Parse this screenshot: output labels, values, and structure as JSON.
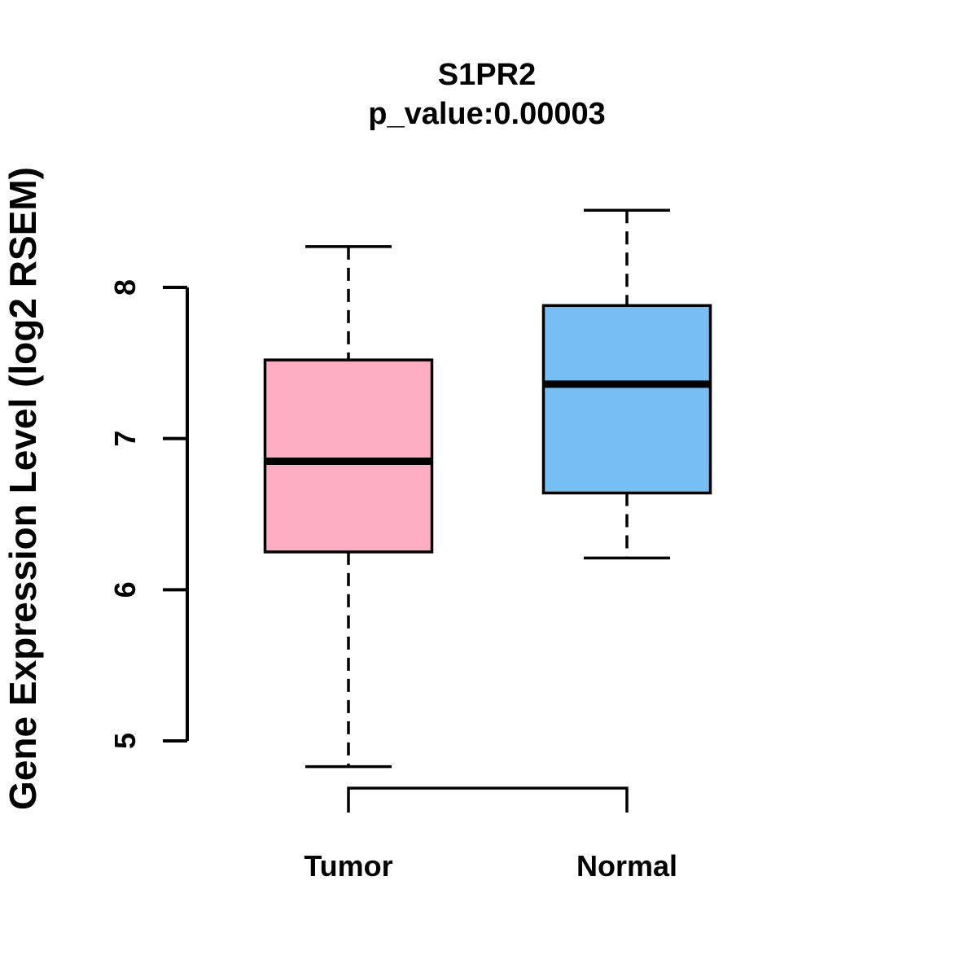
{
  "chart_data": {
    "type": "boxplot",
    "title": "S1PR2",
    "subtitle": "p_value:0.00003",
    "ylabel": "Gene Expression Level (log2 RSEM)",
    "xlabel": "",
    "categories": [
      "Tumor",
      "Normal"
    ],
    "yticks": [
      5,
      6,
      7,
      8
    ],
    "ylim": [
      4.55,
      8.65
    ],
    "grid": false,
    "legend": "none",
    "series": [
      {
        "name": "Tumor",
        "color": "#FBAEC2",
        "lower_whisker": 4.83,
        "q1": 6.25,
        "median": 6.85,
        "q3": 7.52,
        "upper_whisker": 8.27
      },
      {
        "name": "Normal",
        "color": "#76BFF4",
        "lower_whisker": 6.21,
        "q1": 6.64,
        "median": 7.36,
        "q3": 7.88,
        "upper_whisker": 8.51
      }
    ]
  },
  "colors": {
    "background": "#FFFFFF",
    "axis": "#000000",
    "text": "#000000"
  }
}
